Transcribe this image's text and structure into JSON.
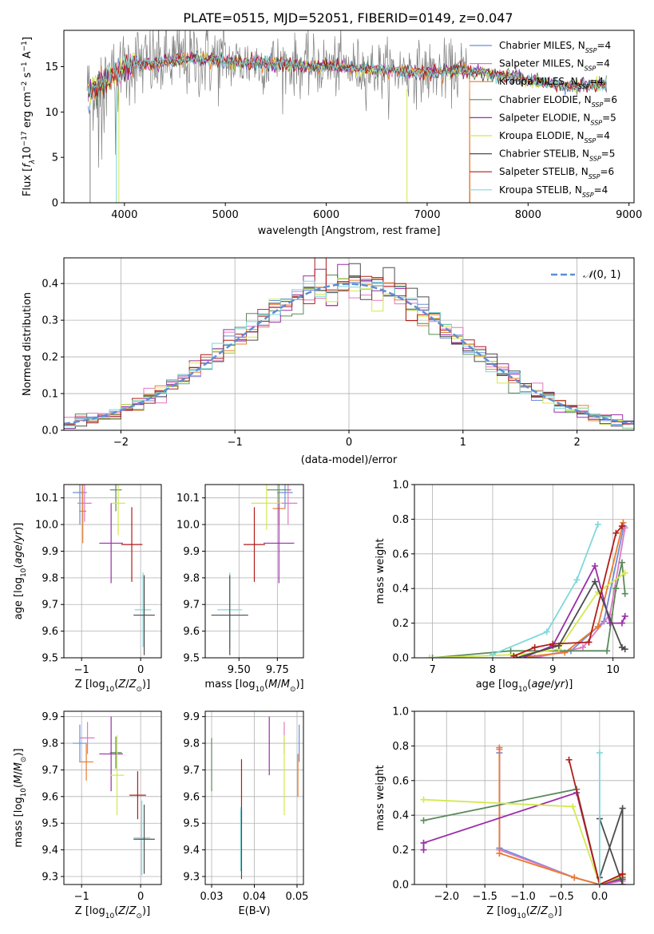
{
  "figure": {
    "title": "PLATE=0515, MJD=52051, FIBERID=0149, z=0.047"
  },
  "chart_data": [
    {
      "id": "spectrum",
      "type": "line",
      "xlabel": "wavelength [Angstrom, rest frame]",
      "ylabel": "Flux [f_λ 10^-17 erg cm^-2 s^-1 A^-1]",
      "xlim": [
        3400,
        9050
      ],
      "ylim": [
        0,
        19
      ],
      "xticks": [
        4000,
        5000,
        6000,
        7000,
        8000,
        9000
      ],
      "yticks": [
        0,
        5,
        10,
        15
      ],
      "grid": false,
      "legend_position": "top-right",
      "data_note_profile": {
        "x": [
          3640,
          3800,
          3950,
          4100,
          4300,
          4500,
          4800,
          5000,
          5200,
          5500,
          5800,
          6000,
          6300,
          6600,
          7000,
          7300,
          7500,
          7800,
          8100,
          8400,
          8700
        ],
        "y": [
          12.0,
          13.5,
          14.5,
          15.5,
          15.2,
          15.8,
          15.8,
          15.6,
          15.4,
          15.4,
          15.0,
          15.1,
          14.8,
          14.6,
          14.4,
          14.5,
          14.4,
          14.0,
          13.3,
          12.8,
          13.0
        ]
      },
      "series": [
        {
          "name": "Chabrier MILES, N_SSP=4",
          "color": "#6a8fd8"
        },
        {
          "name": "Salpeter MILES, N_SSP=4",
          "color": "#e377c2"
        },
        {
          "name": "Kroupa MILES, N_SSP=4",
          "color": "#e87b2c"
        },
        {
          "name": "Chabrier ELODIE, N_SSP=6",
          "color": "#5a8a5a"
        },
        {
          "name": "Salpeter ELODIE, N_SSP=5",
          "color": "#9a2ea8"
        },
        {
          "name": "Kroupa ELODIE, N_SSP=4",
          "color": "#d4e84e"
        },
        {
          "name": "Chabrier STELIB, N_SSP=5",
          "color": "#4d4d4d"
        },
        {
          "name": "Salpeter STELIB, N_SSP=6",
          "color": "#b01c1c"
        },
        {
          "name": "Kroupa STELIB, N_SSP=4",
          "color": "#7fd8dc"
        }
      ]
    },
    {
      "id": "residuals",
      "type": "histogram",
      "xlabel": "(data-model)/error",
      "ylabel": "Normed distribution",
      "xlim": [
        -2.5,
        2.5
      ],
      "ylim": [
        0,
        0.47
      ],
      "xticks": [
        -2,
        -1,
        0,
        1,
        2
      ],
      "yticks": [
        0.0,
        0.1,
        0.2,
        0.3,
        0.4
      ],
      "grid": true,
      "legend_position": "top-right",
      "reference": {
        "name": "𝒩(0,1)",
        "color": "#5f8dd3",
        "style": "dashed"
      },
      "bin_width": 0.1,
      "bins_start": -2.5
    },
    {
      "id": "age-vs-Z",
      "type": "errorbar",
      "xlabel": "Z [log10(Z/Z☉)]",
      "ylabel": "age [log10(age/yr)]",
      "xlim": [
        -1.3,
        0.35
      ],
      "ylim": [
        9.5,
        10.15
      ],
      "xticks": [
        -1,
        0
      ],
      "yticks": [
        9.5,
        9.6,
        9.7,
        9.8,
        9.9,
        10.0,
        10.1
      ],
      "grid": true,
      "points": [
        {
          "color": "#6a8fd8",
          "x": -1.03,
          "xerr": 0.12,
          "y": 10.12,
          "yerr": 0.12
        },
        {
          "color": "#e377c2",
          "x": -0.95,
          "xerr": 0.12,
          "y": 10.08,
          "yerr": 0.07
        },
        {
          "color": "#e87b2c",
          "x": -0.98,
          "xerr": 0.06,
          "y": 10.05,
          "yerr": 0.12
        },
        {
          "color": "#5a8a5a",
          "x": -0.42,
          "xerr": 0.1,
          "y": 10.13,
          "yerr": 0.08
        },
        {
          "color": "#d4e84e",
          "x": -0.38,
          "xerr": 0.12,
          "y": 10.08,
          "yerr": 0.12
        },
        {
          "color": "#9a2ea8",
          "x": -0.5,
          "xerr": 0.2,
          "y": 9.93,
          "yerr": 0.15
        },
        {
          "color": "#b01c1c",
          "x": -0.15,
          "xerr": 0.18,
          "y": 9.925,
          "yerr": 0.14
        },
        {
          "color": "#7fd8dc",
          "x": 0.04,
          "xerr": 0.14,
          "y": 9.68,
          "yerr": 0.14
        },
        {
          "color": "#4d4d4d",
          "x": 0.06,
          "xerr": 0.18,
          "y": 9.66,
          "yerr": 0.15
        }
      ]
    },
    {
      "id": "age-vs-mass",
      "type": "errorbar",
      "xlabel": "mass [log10(M/M☉)]",
      "ylabel": "",
      "xlim": [
        9.28,
        9.92
      ],
      "ylim": [
        9.5,
        10.15
      ],
      "xticks": [
        9.5,
        9.75
      ],
      "yticks": [
        9.5,
        9.6,
        9.7,
        9.8,
        9.9,
        10.0,
        10.1
      ],
      "grid": true,
      "points": [
        {
          "color": "#6a8fd8",
          "x": 9.8,
          "xerr": 0.05,
          "y": 10.12,
          "yerr": 0.06
        },
        {
          "color": "#e377c2",
          "x": 9.82,
          "xerr": 0.06,
          "y": 10.08,
          "yerr": 0.08
        },
        {
          "color": "#e87b2c",
          "x": 9.76,
          "xerr": 0.04,
          "y": 10.06,
          "yerr": 0.06
        },
        {
          "color": "#5a8a5a",
          "x": 9.76,
          "xerr": 0.08,
          "y": 10.13,
          "yerr": 0.06
        },
        {
          "color": "#d4e84e",
          "x": 9.68,
          "xerr": 0.1,
          "y": 10.08,
          "yerr": 0.1
        },
        {
          "color": "#9a2ea8",
          "x": 9.76,
          "xerr": 0.1,
          "y": 9.93,
          "yerr": 0.15
        },
        {
          "color": "#b01c1c",
          "x": 9.6,
          "xerr": 0.07,
          "y": 9.925,
          "yerr": 0.14
        },
        {
          "color": "#7fd8dc",
          "x": 9.44,
          "xerr": 0.08,
          "y": 9.68,
          "yerr": 0.14
        },
        {
          "color": "#4d4d4d",
          "x": 9.44,
          "xerr": 0.12,
          "y": 9.66,
          "yerr": 0.15
        }
      ]
    },
    {
      "id": "massweight-vs-age",
      "type": "line",
      "xlabel": "age [log10(age/yr)]",
      "ylabel": "mass weight",
      "xlim": [
        6.7,
        10.35
      ],
      "ylim": [
        0,
        1.0
      ],
      "xticks": [
        7,
        8,
        9,
        10
      ],
      "yticks": [
        0.0,
        0.2,
        0.4,
        0.6,
        0.8,
        1.0
      ],
      "grid": true,
      "series": [
        {
          "color": "#6a8fd8",
          "x": [
            8.6,
            9.3,
            9.85,
            10.18
          ],
          "y": [
            0.0,
            0.04,
            0.21,
            0.76
          ]
        },
        {
          "color": "#e377c2",
          "x": [
            8.7,
            9.5,
            9.95,
            10.2
          ],
          "y": [
            0.0,
            0.06,
            0.25,
            0.75
          ]
        },
        {
          "color": "#e87b2c",
          "x": [
            8.4,
            9.2,
            9.75,
            10.17
          ],
          "y": [
            0.0,
            0.03,
            0.18,
            0.78
          ]
        },
        {
          "color": "#5a8a5a",
          "x": [
            7.0,
            8.3,
            9.9,
            10.05,
            10.15,
            10.2
          ],
          "y": [
            0.0,
            0.04,
            0.04,
            0.4,
            0.55,
            0.37
          ]
        },
        {
          "color": "#9a2ea8",
          "x": [
            8.5,
            9.0,
            9.7,
            9.95,
            10.15,
            10.2
          ],
          "y": [
            0.0,
            0.07,
            0.53,
            0.2,
            0.2,
            0.24
          ]
        },
        {
          "color": "#d4e84e",
          "x": [
            6.95,
            8.5,
            9.1,
            9.75,
            10.2
          ],
          "y": [
            0.0,
            0.02,
            0.05,
            0.38,
            0.49
          ]
        },
        {
          "color": "#4d4d4d",
          "x": [
            8.4,
            9.1,
            9.7,
            10.15,
            10.2
          ],
          "y": [
            0.0,
            0.07,
            0.44,
            0.06,
            0.05
          ]
        },
        {
          "color": "#b01c1c",
          "x": [
            8.35,
            8.7,
            9.0,
            9.6,
            10.05,
            10.15
          ],
          "y": [
            0.01,
            0.06,
            0.08,
            0.09,
            0.72,
            0.76
          ]
        },
        {
          "color": "#7fd8dc",
          "x": [
            8.0,
            8.9,
            9.4,
            9.75
          ],
          "y": [
            0.02,
            0.15,
            0.45,
            0.77
          ]
        }
      ]
    },
    {
      "id": "mass-vs-Z",
      "type": "errorbar",
      "xlabel": "Z [log10(Z/Z☉)]",
      "ylabel": "mass [log10(M/M☉)]",
      "xlim": [
        -1.3,
        0.35
      ],
      "ylim": [
        9.27,
        9.92
      ],
      "xticks": [
        -1,
        0
      ],
      "yticks": [
        9.3,
        9.4,
        9.5,
        9.6,
        9.7,
        9.8,
        9.9
      ],
      "grid": true,
      "points": [
        {
          "color": "#6a8fd8",
          "x": -1.03,
          "xerr": 0.12,
          "y": 9.8,
          "yerr": 0.07
        },
        {
          "color": "#e377c2",
          "x": -0.9,
          "xerr": 0.12,
          "y": 9.82,
          "yerr": 0.06
        },
        {
          "color": "#e87b2c",
          "x": -0.92,
          "xerr": 0.12,
          "y": 9.73,
          "yerr": 0.07
        },
        {
          "color": "#5a8a5a",
          "x": -0.42,
          "xerr": 0.1,
          "y": 9.765,
          "yerr": 0.06
        },
        {
          "color": "#9a2ea8",
          "x": -0.5,
          "xerr": 0.2,
          "y": 9.76,
          "yerr": 0.14
        },
        {
          "color": "#d4e84e",
          "x": -0.4,
          "xerr": 0.12,
          "y": 9.68,
          "yerr": 0.15
        },
        {
          "color": "#b01c1c",
          "x": -0.05,
          "xerr": 0.14,
          "y": 9.605,
          "yerr": 0.09
        },
        {
          "color": "#7fd8dc",
          "x": 0.02,
          "xerr": 0.14,
          "y": 9.445,
          "yerr": 0.14
        },
        {
          "color": "#4d4d4d",
          "x": 0.06,
          "xerr": 0.18,
          "y": 9.44,
          "yerr": 0.13
        }
      ]
    },
    {
      "id": "mass-vs-ebv",
      "type": "errorbar",
      "xlabel": "E(B-V)",
      "ylabel": "",
      "xlim": [
        0.0285,
        0.0515
      ],
      "ylim": [
        9.27,
        9.92
      ],
      "xticks": [
        0.03,
        0.04,
        0.05
      ],
      "yticks": [
        9.3,
        9.4,
        9.5,
        9.6,
        9.7,
        9.8,
        9.9
      ],
      "grid": true,
      "points": [
        {
          "color": "#6a8fd8",
          "x": 0.0505,
          "xerr": 0.0,
          "y": 9.8,
          "yerr": 0.07
        },
        {
          "color": "#e377c2",
          "x": 0.047,
          "xerr": 0.0,
          "y": 9.82,
          "yerr": 0.06
        },
        {
          "color": "#e87b2c",
          "x": 0.0502,
          "xerr": 0.0,
          "y": 9.68,
          "yerr": 0.08
        },
        {
          "color": "#5a8a5a",
          "x": 0.03,
          "xerr": 0.0,
          "y": 9.72,
          "yerr": 0.1
        },
        {
          "color": "#9a2ea8",
          "x": 0.0435,
          "xerr": 0.0,
          "y": 9.79,
          "yerr": 0.11
        },
        {
          "color": "#d4e84e",
          "x": 0.047,
          "xerr": 0.0,
          "y": 9.68,
          "yerr": 0.15
        },
        {
          "color": "#b01c1c",
          "x": 0.037,
          "xerr": 0.0,
          "y": 9.62,
          "yerr": 0.12
        },
        {
          "color": "#7fd8dc",
          "x": 0.0368,
          "xerr": 0.0,
          "y": 9.44,
          "yerr": 0.12
        },
        {
          "color": "#4d4d4d",
          "x": 0.037,
          "xerr": 0.0,
          "y": 9.42,
          "yerr": 0.13
        }
      ]
    },
    {
      "id": "massweight-vs-Z",
      "type": "line",
      "xlabel": "Z [log10(Z/Z☉)]",
      "ylabel": "mass weight",
      "xlim": [
        -2.42,
        0.45
      ],
      "ylim": [
        0,
        1.0
      ],
      "xticks": [
        -2.0,
        -1.5,
        -1.0,
        -0.5,
        0.0
      ],
      "yticks": [
        0.0,
        0.2,
        0.4,
        0.6,
        0.8,
        1.0
      ],
      "grid": true,
      "series": [
        {
          "color": "#6a8fd8",
          "x": [
            -1.31,
            -1.31,
            -0.33,
            0.0,
            0.3
          ],
          "y": [
            0.76,
            0.21,
            0.04,
            0.0,
            0.0
          ]
        },
        {
          "color": "#e377c2",
          "x": [
            -1.31,
            -1.31,
            -0.33,
            0.0,
            0.3
          ],
          "y": [
            0.78,
            0.2,
            0.04,
            0.0,
            0.02
          ]
        },
        {
          "color": "#e87b2c",
          "x": [
            -1.31,
            -1.31,
            -0.33,
            0.0,
            0.3
          ],
          "y": [
            0.79,
            0.18,
            0.04,
            0.0,
            0.06
          ]
        },
        {
          "color": "#5a8a5a",
          "x": [
            -2.3,
            -0.3,
            0.0,
            0.3
          ],
          "y": [
            0.37,
            0.55,
            0.0,
            0.04
          ]
        },
        {
          "color": "#9a2ea8",
          "x": [
            -2.3,
            -2.3,
            -0.3,
            0.0,
            0.3
          ],
          "y": [
            0.2,
            0.24,
            0.53,
            0.0,
            0.03
          ]
        },
        {
          "color": "#d4e84e",
          "x": [
            -2.3,
            -0.35,
            0.0,
            0.3
          ],
          "y": [
            0.49,
            0.45,
            0.0,
            0.05
          ]
        },
        {
          "color": "#4d4d4d",
          "x": [
            0.0,
            0.3,
            0.3,
            0.0
          ],
          "y": [
            0.38,
            0.0,
            0.44,
            0.04
          ]
        },
        {
          "color": "#b01c1c",
          "x": [
            -0.4,
            0.0,
            0.3
          ],
          "y": [
            0.72,
            0.0,
            0.06
          ]
        },
        {
          "color": "#7fd8dc",
          "x": [
            0.0,
            0.0
          ],
          "y": [
            0.76,
            0.0
          ]
        }
      ]
    }
  ]
}
